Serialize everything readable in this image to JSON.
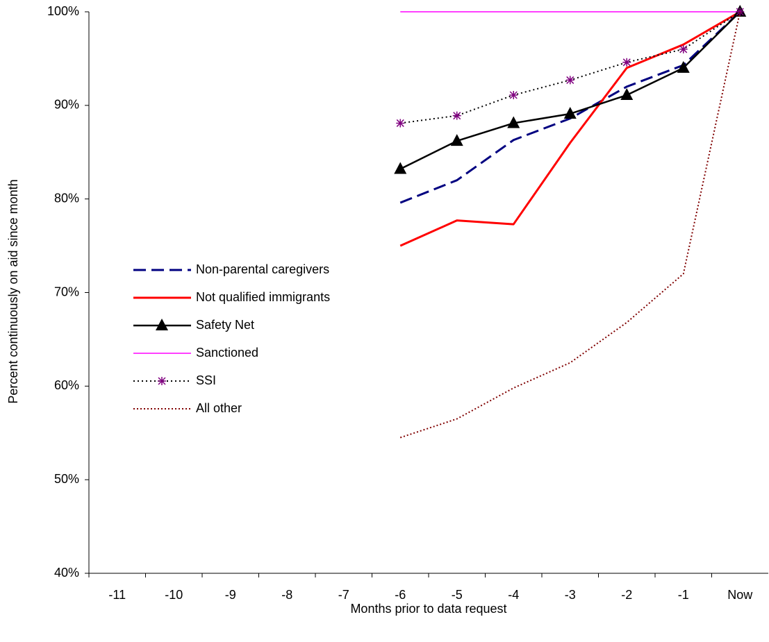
{
  "chart_data": {
    "type": "line",
    "x_label": "Months prior to data request",
    "y_label": "Percent continuously on aid since month",
    "categories": [
      "-11",
      "-10",
      "-9",
      "-8",
      "-7",
      "-6",
      "-5",
      "-4",
      "-3",
      "-2",
      "-1",
      "Now"
    ],
    "ylim": [
      40,
      100
    ],
    "yticks": [
      {
        "value": 40,
        "label": "40%"
      },
      {
        "value": 50,
        "label": "50%"
      },
      {
        "value": 60,
        "label": "60%"
      },
      {
        "value": 70,
        "label": "70%"
      },
      {
        "value": 80,
        "label": "80%"
      },
      {
        "value": 90,
        "label": "90%"
      },
      {
        "value": 100,
        "label": "100%"
      }
    ],
    "series": [
      {
        "name": "Non-parental caregivers",
        "color": "#000080",
        "dash": "18 8",
        "width": 3,
        "marker": "none",
        "values": [
          null,
          null,
          null,
          null,
          null,
          79.6,
          82,
          86.3,
          88.6,
          92,
          94.3,
          100
        ]
      },
      {
        "name": "Not qualified immigrants",
        "color": "#ff0000",
        "dash": "none",
        "width": 3,
        "marker": "none",
        "values": [
          null,
          null,
          null,
          null,
          null,
          75,
          77.7,
          77.3,
          86,
          94,
          96.5,
          100
        ]
      },
      {
        "name": "Safety Net",
        "color": "#000000",
        "dash": "none",
        "width": 2.5,
        "marker": "triangle",
        "values": [
          null,
          null,
          null,
          null,
          null,
          83.2,
          86.2,
          88.1,
          89.1,
          91.1,
          94,
          100
        ]
      },
      {
        "name": "Sanctioned",
        "color": "#ff00ff",
        "dash": "none",
        "width": 1.5,
        "marker": "none",
        "values": [
          null,
          null,
          null,
          null,
          null,
          100,
          100,
          100,
          100,
          100,
          100,
          100
        ]
      },
      {
        "name": "SSI",
        "color": "#000000",
        "dash": "2 4",
        "width": 2,
        "marker": "asterisk",
        "marker_color": "#800080",
        "values": [
          null,
          null,
          null,
          null,
          null,
          88.1,
          88.9,
          91.1,
          92.7,
          94.6,
          96,
          100
        ]
      },
      {
        "name": "All other",
        "color": "#800000",
        "dash": "2 3",
        "width": 2,
        "marker": "none",
        "values": [
          null,
          null,
          null,
          null,
          null,
          54.5,
          56.5,
          59.8,
          62.5,
          66.8,
          72,
          100
        ]
      }
    ]
  }
}
